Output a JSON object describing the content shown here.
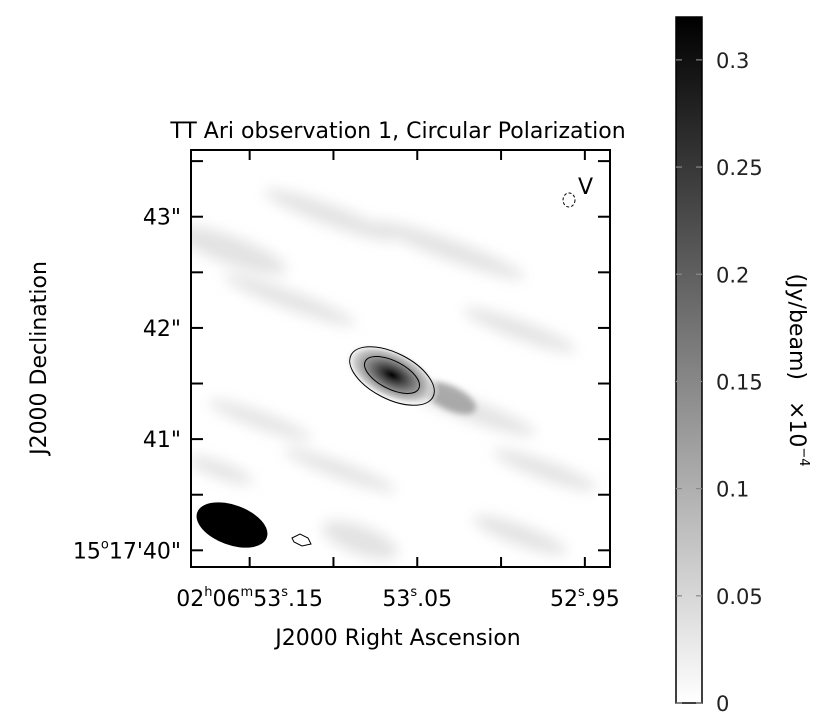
{
  "chart_data": {
    "type": "heatmap",
    "title": "TT Ari observation 1, Circular Polarization",
    "stokes_label": "V",
    "xlabel": "J2000 Right Ascension",
    "ylabel": "J2000 Declination",
    "colorbar_label": "(Jy/beam)",
    "colorbar_multiplier": "×10",
    "colorbar_exponent": "−4",
    "colorbar_range": [
      0,
      0.32
    ],
    "colorbar_ticks": [
      {
        "value": 0,
        "label": "0"
      },
      {
        "value": 0.05,
        "label": "0.05"
      },
      {
        "value": 0.1,
        "label": "0.1"
      },
      {
        "value": 0.15,
        "label": "0.15"
      },
      {
        "value": 0.2,
        "label": "0.2"
      },
      {
        "value": 0.25,
        "label": "0.25"
      },
      {
        "value": 0.3,
        "label": "0.3"
      }
    ],
    "x_ticks": [
      {
        "ra_s": 53.15,
        "h": "02",
        "m": "06",
        "s_int": "53",
        "s_frac": ".15",
        "full": true
      },
      {
        "ra_s": 53.05,
        "s_int": "53",
        "s_frac": ".05",
        "full": false
      },
      {
        "ra_s": 52.95,
        "s_int": "52",
        "s_frac": ".95",
        "full": false
      }
    ],
    "x_range_s": [
      53.185,
      52.935
    ],
    "y_ticks": [
      {
        "dec_arcsec": 40,
        "label_deg": "15",
        "label_min": "17",
        "label_sec": "40\"",
        "full": true
      },
      {
        "dec_arcsec": 41,
        "label": "41\"",
        "full": false
      },
      {
        "dec_arcsec": 42,
        "label": "42\"",
        "full": false
      },
      {
        "dec_arcsec": 43,
        "label": "43\"",
        "full": false
      }
    ],
    "y_range_arcsec": [
      39.85,
      43.6
    ],
    "source_peak": {
      "ra_s": 53.067,
      "dec_arcsec": 41.48,
      "value": 0.3
    },
    "contours": [
      0.1,
      0.2
    ],
    "beam": "filled ellipse lower-left"
  }
}
